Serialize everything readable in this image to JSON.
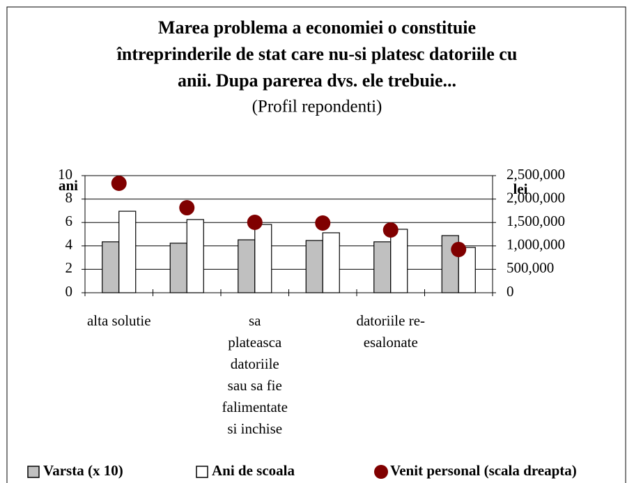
{
  "chart_data": {
    "type": "bar",
    "title": "Marea problema a economiei o constituie întreprinderile de stat care nu-si platesc datoriile cu anii. Dupa parerea dvs. ele trebuie...",
    "title_lines": [
      "Marea problema a economiei o constituie",
      "întreprinderile de stat care nu-si platesc datoriile cu",
      "anii. Dupa parerea dvs. ele trebuie..."
    ],
    "subtitle": "(Profil repondenti)",
    "y_label": "ani",
    "y2_label": "lei",
    "categories": [
      "alta solutie",
      null,
      "sa\nplateasca\ndatoriile\nsau sa fie\nfalimentate\nsi inchise",
      null,
      "datoriile re-\nesalonate",
      null
    ],
    "series": [
      {
        "name": "Varsta (x 10)",
        "color": "#c0c0c0",
        "values": [
          4.35,
          4.23,
          4.52,
          4.46,
          4.35,
          4.88
        ]
      },
      {
        "name": "Ani de scoala",
        "color": "#ffffff",
        "values": [
          6.96,
          6.25,
          5.83,
          5.12,
          5.42,
          3.87
        ]
      },
      {
        "name": "Venit personal (scala dreapta)",
        "color": "#800000",
        "axis": "y2",
        "type": "scatter",
        "values": [
          2336000,
          1815000,
          1503000,
          1488000,
          1339000,
          923000
        ]
      }
    ],
    "ylim": [
      0,
      10
    ],
    "yticks": [
      0,
      2,
      4,
      6,
      8,
      10
    ],
    "y2lim": [
      0,
      2500000
    ],
    "y2ticks": [
      0,
      {
        "value": 500000,
        "label": "500,000"
      },
      {
        "value": 1000000,
        "label": "1,000,000"
      },
      {
        "value": 1500000,
        "label": "1,500,000"
      },
      {
        "value": 2000000,
        "label": "2,000,000"
      },
      {
        "value": 2500000,
        "label": "2,500,000"
      }
    ],
    "grid": true,
    "legend": "bottom"
  }
}
